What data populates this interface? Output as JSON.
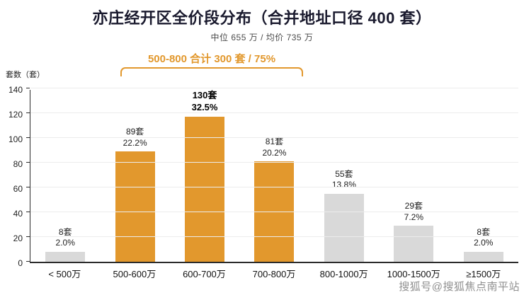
{
  "title": "亦庄经开区全价段分布（合并地址口径 400 套）",
  "subtitle": "中位 655 万 / 均价 735 万",
  "annotation": "500-800 合计 300 套 / 75%",
  "ylabel": "套数（套）",
  "watermark": "搜狐号@搜狐焦点南平站",
  "colors": {
    "highlight": "#E2982D",
    "muted": "#D9D9D9",
    "title": "#1A1A2E",
    "annotation": "#E2982D",
    "axis": "#2B2B2B",
    "grid": "#ECECEC"
  },
  "chart_data": {
    "type": "bar",
    "title": "亦庄经开区全价段分布（合并地址口径 400 套）",
    "subtitle": "中位 655 万 / 均价 735 万",
    "xlabel": "",
    "ylabel": "套数（套）",
    "ylim": [
      0,
      140
    ],
    "yticks": [
      0,
      20,
      40,
      60,
      80,
      100,
      120,
      140
    ],
    "grid": true,
    "legend": false,
    "categories": [
      "< 500万",
      "500-600万",
      "600-700万",
      "700-800万",
      "800-1000万",
      "1000-1500万",
      "≥1500万"
    ],
    "values": [
      8,
      89,
      130,
      81,
      55,
      29,
      8
    ],
    "percentages": [
      "2.0%",
      "22.2%",
      "32.5%",
      "20.2%",
      "13.8%",
      "7.2%",
      "2.0%"
    ],
    "bar_labels": [
      {
        "count": "8套",
        "pct": "2.0%"
      },
      {
        "count": "89套",
        "pct": "22.2%"
      },
      {
        "count": "130套",
        "pct": "32.5%"
      },
      {
        "count": "81套",
        "pct": "20.2%"
      },
      {
        "count": "55套",
        "pct": "13.8%"
      },
      {
        "count": "29套",
        "pct": "7.2%"
      },
      {
        "count": "8套",
        "pct": "2.0%"
      }
    ],
    "highlighted": [
      false,
      true,
      true,
      true,
      false,
      false,
      false
    ],
    "emphasis_index": 2,
    "annotation": "500-800 合计 300 套 / 75%",
    "annotation_span_categories": [
      "500-600万",
      "600-700万",
      "700-800万"
    ]
  }
}
